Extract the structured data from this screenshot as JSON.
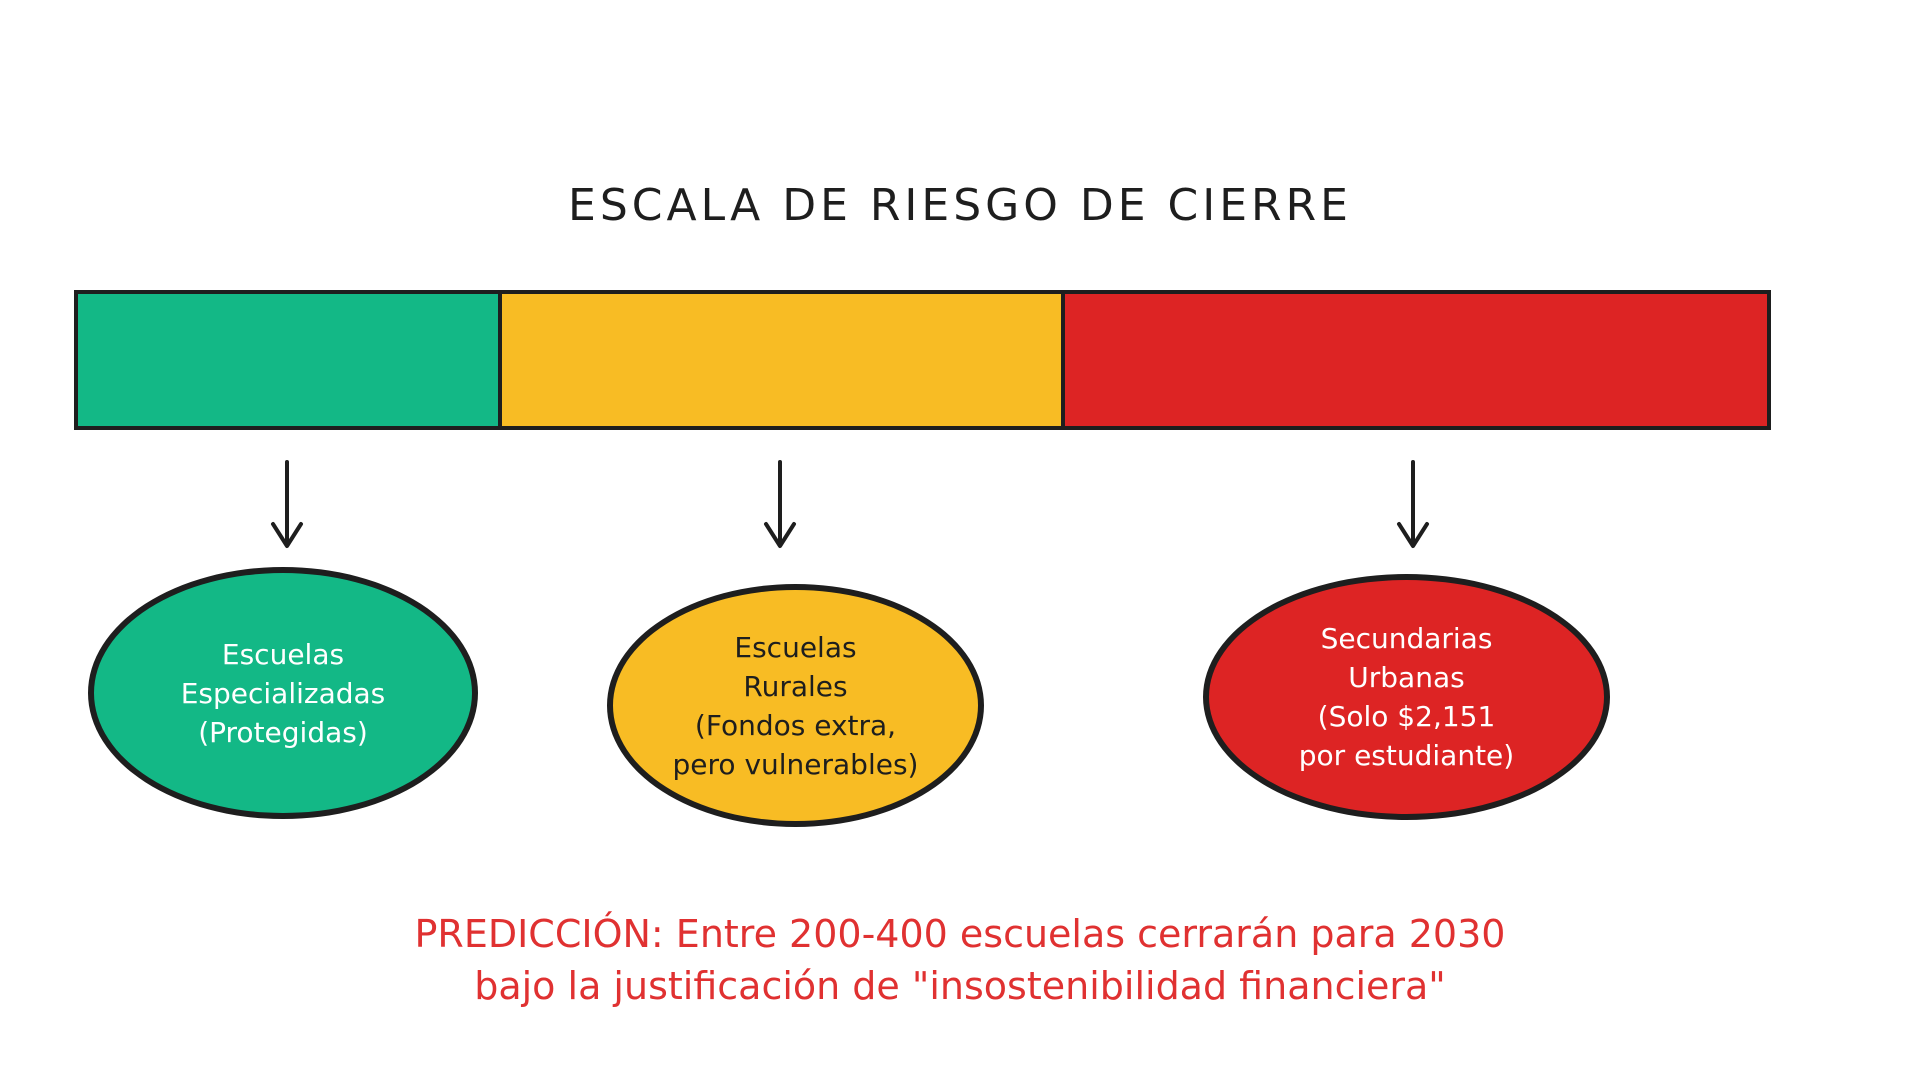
{
  "title": "ESCALA DE RIESGO DE CIERRE",
  "colors": {
    "low": "#13b886",
    "medium": "#f8bc24",
    "high": "#dd2424",
    "stroke": "#1e1e1e",
    "prediction": "#e03131"
  },
  "scale": {
    "segments": [
      {
        "level": "low",
        "color": "#13b886"
      },
      {
        "level": "medium",
        "color": "#f8bc24"
      },
      {
        "level": "high",
        "color": "#dd2424"
      }
    ]
  },
  "nodes": [
    {
      "level": "low",
      "color": "#13b886",
      "text_color": "#ffffff",
      "lines": [
        "Escuelas",
        "Especializadas",
        "(Protegidas)"
      ]
    },
    {
      "level": "medium",
      "color": "#f8bc24",
      "text_color": "#1e1e1e",
      "lines": [
        "Escuelas",
        "Rurales",
        "(Fondos extra,",
        "pero vulnerables)"
      ]
    },
    {
      "level": "high",
      "color": "#dd2424",
      "text_color": "#ffffff",
      "lines": [
        "Secundarias",
        "Urbanas",
        "(Solo $2,151",
        "por estudiante)"
      ]
    }
  ],
  "prediction": {
    "line1": "PREDICCIÓN: Entre 200-400 escuelas cerrarán para 2030",
    "line2": "bajo la justificación de \"insostenibilidad financiera\""
  }
}
